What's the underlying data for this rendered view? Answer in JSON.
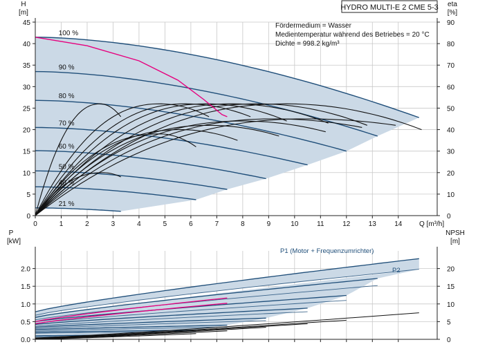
{
  "header": {
    "title": "HYDRO MULTI-E 2 CME 5-3",
    "info_lines": [
      "Fördermedium = Wasser",
      "Medientemperatur während des Betriebes = 20 °C",
      "Dichte = 998.2 kg/m³"
    ]
  },
  "colors": {
    "envelope_fill": "#cbd9e6",
    "speed_curve": "#1f4e79",
    "eff_curve": "#111111",
    "max_eff_curve": "#e6007e",
    "grid": "#c8c8c8",
    "axis": "#222222"
  },
  "chart_data": [
    {
      "type": "line",
      "name": "head-efficiency",
      "xlabel": "Q [m³/h]",
      "ylabel_left": [
        "H",
        "[m]"
      ],
      "ylabel_right": [
        "eta",
        "[%]"
      ],
      "xlim": [
        0,
        15.5
      ],
      "ylim_left": [
        0,
        45
      ],
      "ylim_right": [
        0,
        90
      ],
      "x_ticks": [
        "0",
        "1",
        "2",
        "3",
        "4",
        "5",
        "6",
        "7",
        "8",
        "9",
        "10",
        "11",
        "12",
        "13",
        "14"
      ],
      "y_ticks_left": [
        "0",
        "5",
        "10",
        "15",
        "20",
        "25",
        "30",
        "35",
        "40",
        "45"
      ],
      "y_ticks_right": [
        "0",
        "10",
        "20",
        "30",
        "40",
        "50",
        "60",
        "70",
        "80",
        "90"
      ],
      "grid": true,
      "speed_curves": [
        {
          "label": "100 %",
          "H0": 41.5,
          "qmax": 14.8,
          "hend": 22.8
        },
        {
          "label": "90 %",
          "H0": 33.5,
          "qmax": 13.2,
          "hend": 18.5
        },
        {
          "label": "80 %",
          "H0": 26.8,
          "qmax": 12.0,
          "hend": 15.0
        },
        {
          "label": "70 %",
          "H0": 20.5,
          "qmax": 10.5,
          "hend": 11.8
        },
        {
          "label": "60 %",
          "H0": 15.1,
          "qmax": 8.9,
          "hend": 8.6
        },
        {
          "label": "50 %",
          "H0": 10.4,
          "qmax": 7.4,
          "hend": 6.1
        },
        {
          "label": "40 %",
          "H0": 6.7,
          "qmax": 6.2,
          "hend": 3.7
        },
        {
          "label": "21 %",
          "H0": 1.8,
          "qmax": 3.3,
          "hend": 1.0
        }
      ],
      "efficiency_curves": [
        {
          "qpeak": 2.5,
          "etapeak": 52,
          "qend": 3.3,
          "etaend": 46
        },
        {
          "qpeak": 2.6,
          "etapeak": 20,
          "qend": 3.3,
          "etaend": 18
        },
        {
          "qpeak": 4.8,
          "etapeak": 52,
          "qend": 6.7,
          "etaend": 46
        },
        {
          "qpeak": 5.8,
          "etapeak": 52,
          "qend": 8.3,
          "etaend": 46
        },
        {
          "qpeak": 6.6,
          "etapeak": 52,
          "qend": 9.7,
          "etaend": 44
        },
        {
          "qpeak": 7.6,
          "etapeak": 52,
          "qend": 11.3,
          "etaend": 43
        },
        {
          "qpeak": 8.6,
          "etapeak": 52,
          "qend": 12.8,
          "etaend": 42
        },
        {
          "qpeak": 9.7,
          "etapeak": 52,
          "qend": 14.9,
          "etaend": 40
        },
        {
          "qpeak": 4.8,
          "etapeak": 38,
          "qend": 6.2,
          "etaend": 32
        },
        {
          "qpeak": 5.6,
          "etapeak": 40,
          "qend": 7.8,
          "etaend": 35
        },
        {
          "qpeak": 6.7,
          "etapeak": 42,
          "qend": 9.4,
          "etaend": 37
        },
        {
          "qpeak": 8.0,
          "etapeak": 44,
          "qend": 11.2,
          "etaend": 39
        },
        {
          "qpeak": 9.2,
          "etapeak": 45,
          "qend": 12.6,
          "etaend": 41
        },
        {
          "qpeak": 10.5,
          "etapeak": 45,
          "qend": 13.9,
          "etaend": 42
        }
      ],
      "max_efficiency_curve": {
        "x": [
          0,
          2,
          4,
          5.5,
          6.5,
          7.2,
          7.4
        ],
        "y": [
          41.5,
          39.5,
          36,
          31.5,
          27,
          23.5,
          23
        ]
      }
    },
    {
      "type": "line",
      "name": "power-npsh",
      "xlabel": "",
      "ylabel_left": [
        "P",
        "[kW]"
      ],
      "ylabel_right": [
        "NPSH",
        "[m]"
      ],
      "xlim": [
        0,
        15.5
      ],
      "ylim_left": [
        0,
        2.5
      ],
      "ylim_right": [
        0,
        25
      ],
      "y_ticks_left": [
        "0.0",
        "0.5",
        "1.0",
        "1.5",
        "2.0"
      ],
      "y_ticks_right": [
        "0",
        "5",
        "10",
        "15",
        "20"
      ],
      "grid": true,
      "annotations": [
        "P1 (Motor + Frequenzumrichter)",
        "P2"
      ],
      "power_p1": [
        {
          "p0": 0.78,
          "qmax": 14.8,
          "pend": 2.28
        },
        {
          "p0": 0.62,
          "qmax": 13.2,
          "pend": 1.72
        },
        {
          "p0": 0.5,
          "qmax": 12.0,
          "pend": 1.24
        },
        {
          "p0": 0.42,
          "qmax": 10.5,
          "pend": 0.88
        },
        {
          "p0": 0.34,
          "qmax": 8.9,
          "pend": 0.6
        },
        {
          "p0": 0.27,
          "qmax": 7.4,
          "pend": 0.4
        },
        {
          "p0": 0.2,
          "qmax": 6.2,
          "pend": 0.26
        },
        {
          "p0": 0.1,
          "qmax": 3.3,
          "pend": 0.12
        }
      ],
      "power_p2": [
        {
          "p0": 0.68,
          "qmax": 14.8,
          "pend": 1.98
        },
        {
          "p0": 0.55,
          "qmax": 13.2,
          "pend": 1.52
        },
        {
          "p0": 0.45,
          "qmax": 12.0,
          "pend": 1.1
        },
        {
          "p0": 0.37,
          "qmax": 10.5,
          "pend": 0.78
        },
        {
          "p0": 0.3,
          "qmax": 8.9,
          "pend": 0.53
        },
        {
          "p0": 0.23,
          "qmax": 7.4,
          "pend": 0.35
        },
        {
          "p0": 0.17,
          "qmax": 6.2,
          "pend": 0.22
        },
        {
          "p0": 0.07,
          "qmax": 3.3,
          "pend": 0.09
        }
      ],
      "max_efficiency_power": [
        {
          "p0": 0.5,
          "qmax": 7.4,
          "pend": 1.17
        },
        {
          "p0": 0.44,
          "qmax": 7.4,
          "pend": 1.02
        }
      ],
      "npsh": [
        {
          "x0": 0.0,
          "y0": 0.4,
          "x1": 14.8,
          "y1": 7.5
        },
        {
          "x0": 0.0,
          "y0": 0.3,
          "x1": 12.0,
          "y1": 5.4
        },
        {
          "x0": 0.0,
          "y0": 0.2,
          "x1": 10.5,
          "y1": 4.4
        },
        {
          "x0": 0.0,
          "y0": 0.1,
          "x1": 8.9,
          "y1": 3.4
        },
        {
          "x0": 0.0,
          "y0": 0.05,
          "x1": 7.4,
          "y1": 2.4
        },
        {
          "x0": 0.0,
          "y0": 0.0,
          "x1": 6.2,
          "y1": 1.6
        }
      ]
    }
  ]
}
